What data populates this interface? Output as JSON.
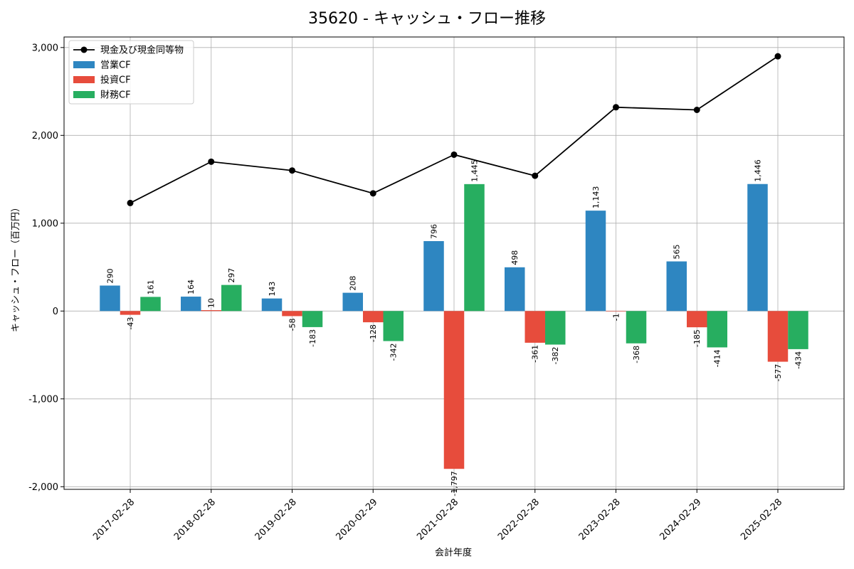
{
  "chart_data": {
    "type": "bar",
    "title": "35620 - キャッシュ・フロー推移",
    "xlabel": "会計年度",
    "ylabel": "キャッシュ・フロー（百万円）",
    "ylim": [
      -2030,
      3120
    ],
    "yticks": [
      -2000,
      -1000,
      0,
      1000,
      2000,
      3000
    ],
    "ytick_labels": [
      "-2,000",
      "-1,000",
      "0",
      "1,000",
      "2,000",
      "3,000"
    ],
    "grid": true,
    "legend_position": "top-left",
    "categories": [
      "2017-02-28",
      "2018-02-28",
      "2019-02-28",
      "2020-02-29",
      "2021-02-28",
      "2022-02-28",
      "2023-02-28",
      "2024-02-29",
      "2025-02-28"
    ],
    "series": [
      {
        "name": "営業CF",
        "kind": "bar",
        "color": "#2e86c1",
        "values": [
          290,
          164,
          143,
          208,
          796,
          498,
          1143,
          565,
          1446
        ],
        "labels": [
          "290",
          "164",
          "143",
          "208",
          "796",
          "498",
          "1,143",
          "565",
          "1,446"
        ]
      },
      {
        "name": "投資CF",
        "kind": "bar",
        "color": "#e74c3c",
        "values": [
          -43,
          10,
          -58,
          -128,
          -1797,
          -361,
          -1,
          -185,
          -577
        ],
        "labels": [
          "-43",
          "10",
          "-58",
          "-128",
          "-1,797",
          "-361",
          "-1",
          "-185",
          "-577"
        ]
      },
      {
        "name": "財務CF",
        "kind": "bar",
        "color": "#27ae60",
        "values": [
          161,
          297,
          -183,
          -342,
          1445,
          -382,
          -368,
          -414,
          -434
        ],
        "labels": [
          "161",
          "297",
          "-183",
          "-342",
          "1,445",
          "-382",
          "-368",
          "-414",
          "-434"
        ]
      },
      {
        "name": "現金及び現金同等物",
        "kind": "line",
        "color": "#000000",
        "values": [
          1230,
          1700,
          1600,
          1340,
          1780,
          1540,
          2320,
          2290,
          2900
        ]
      }
    ],
    "legend_order": [
      3,
      0,
      1,
      2
    ]
  }
}
